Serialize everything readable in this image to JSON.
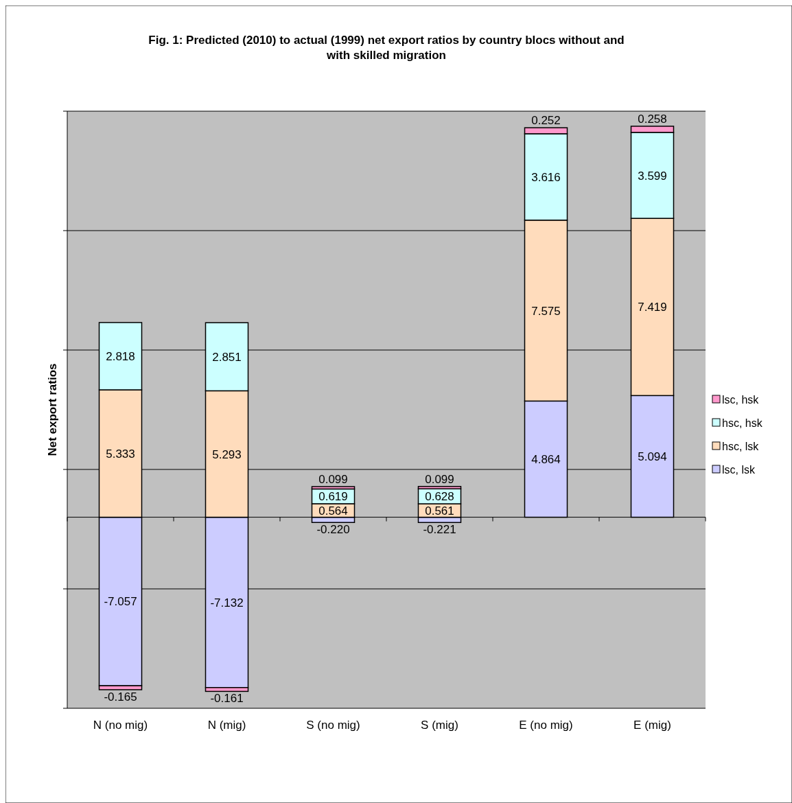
{
  "chart_data": {
    "type": "bar",
    "title": "Fig. 1: Predicted (2010) to actual (1999) net export ratios by country blocs without and with skilled migration",
    "ylabel": "Net export ratios",
    "categories": [
      "N (no mig)",
      "N (mig)",
      "S (no mig)",
      "S (mig)",
      "E (no mig)",
      "E (mig)"
    ],
    "stacked": true,
    "series": [
      {
        "name": "lsc, lsk",
        "color": "#ccccff",
        "values": [
          -7.057,
          -7.132,
          -0.22,
          -0.221,
          4.864,
          5.094
        ],
        "value_labels": [
          "-7.057",
          "-7.132",
          "-0.220",
          "-0.221",
          "4.864",
          "5.094"
        ]
      },
      {
        "name": "hsc, lsk",
        "color": "#ffdcbc",
        "values": [
          5.333,
          5.293,
          0.564,
          0.561,
          7.575,
          7.419
        ]
      },
      {
        "name": "hsc, hsk",
        "color": "#ccffff",
        "values": [
          2.818,
          2.851,
          0.619,
          0.628,
          3.616,
          3.599
        ]
      },
      {
        "name": "lsc, hsk",
        "color": "#ff99cc",
        "values": [
          -0.165,
          -0.161,
          0.099,
          0.099,
          0.252,
          0.258
        ]
      }
    ],
    "ylim": [
      -8,
      17
    ],
    "yticks": [
      {
        "value": -8,
        "label": null
      },
      {
        "value": -3,
        "label": null
      },
      {
        "value": 2,
        "label": null
      },
      {
        "value": 7,
        "label": null
      },
      {
        "value": 12,
        "label": null
      },
      {
        "value": 17,
        "label": null
      }
    ],
    "grid": "y",
    "tick_labels": "x",
    "data_labels": true,
    "legend": "right"
  }
}
